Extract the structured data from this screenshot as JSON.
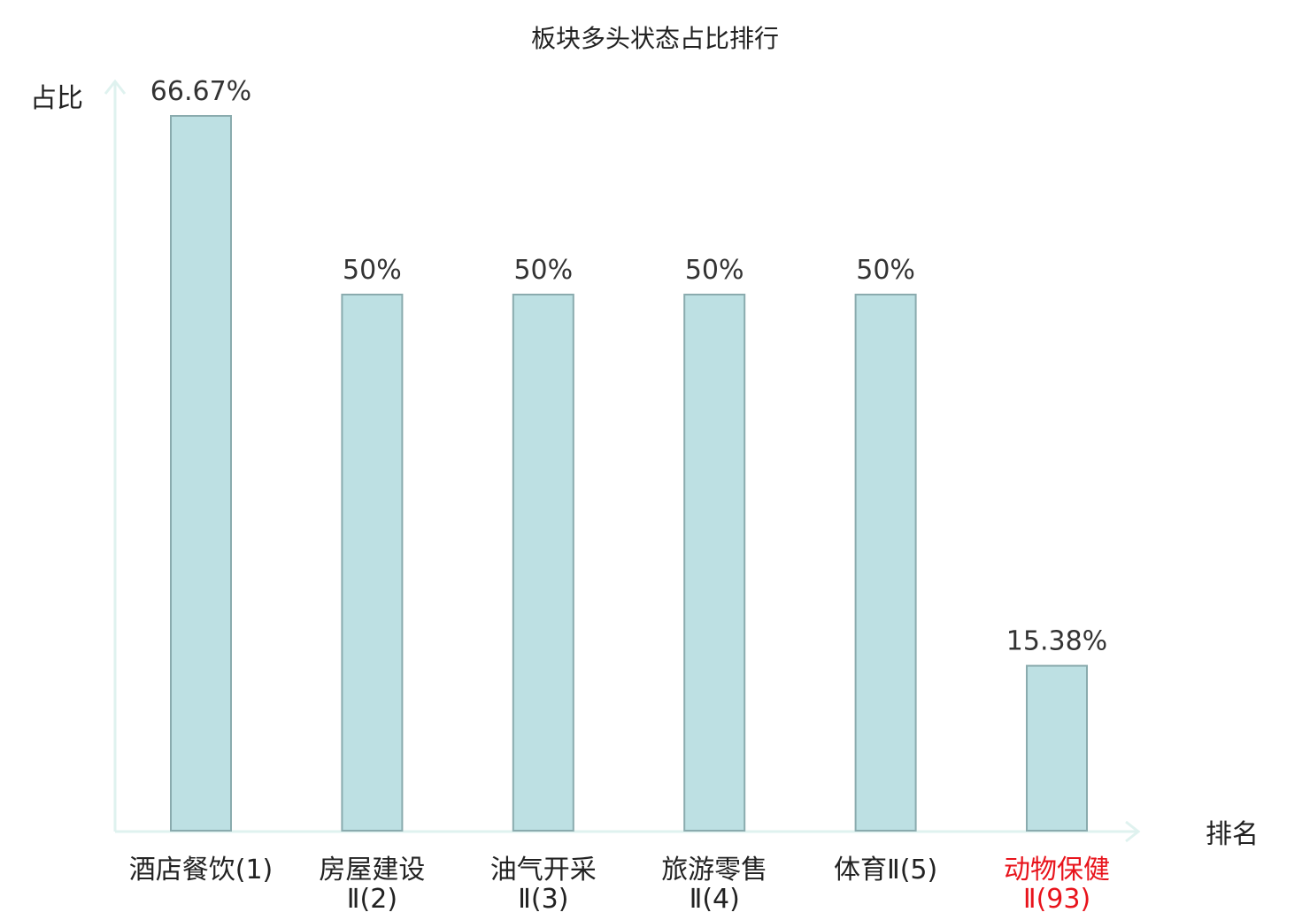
{
  "chart_data": {
    "type": "bar",
    "title": "板块多头状态占比排行",
    "xlabel": "排名",
    "ylabel": "占比",
    "categories": [
      [
        "酒店餐饮(1)"
      ],
      [
        "房屋建设",
        "Ⅱ(2)"
      ],
      [
        "油气开采",
        "Ⅱ(3)"
      ],
      [
        "旅游零售",
        "Ⅱ(4)"
      ],
      [
        "体育Ⅱ(5)"
      ],
      [
        "动物保健",
        "Ⅱ(93)"
      ]
    ],
    "values": [
      66.67,
      50,
      50,
      50,
      50,
      15.38
    ],
    "value_labels": [
      "66.67%",
      "50%",
      "50%",
      "50%",
      "50%",
      "15.38%"
    ],
    "highlight_index": 5,
    "ylim": [
      0,
      66.67
    ],
    "grid": false,
    "legend": "none"
  },
  "colors": {
    "bar_fill": "#bde0e3",
    "bar_stroke": "#8aabae",
    "axis": "#dff2ef",
    "text": "#222222",
    "value_label": "#333333",
    "highlight": "#e8141c"
  }
}
